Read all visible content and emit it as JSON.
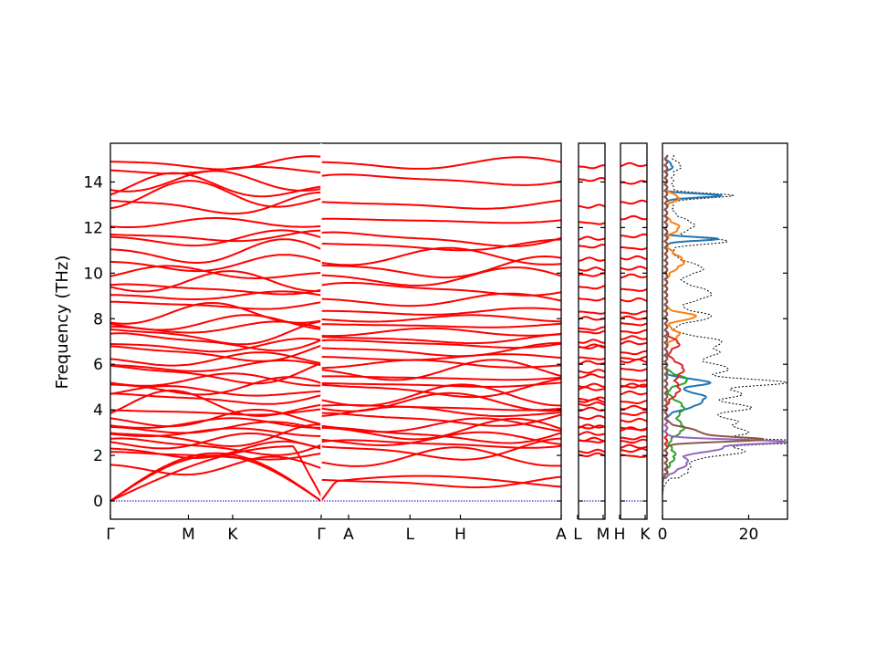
{
  "chart_data": {
    "type": "line",
    "ylabel": "Frequency (THz)",
    "ylim": [
      -0.8,
      15.7
    ],
    "y_ticks": [
      0,
      2,
      4,
      6,
      8,
      10,
      12,
      14
    ],
    "band_color": "#ff0000",
    "zero_line_color": "#0000cc",
    "panels": [
      {
        "name": "main-path",
        "segments": [
          {
            "labels": [
              "Γ",
              "M",
              "K",
              "Γ"
            ],
            "dist": [
              0,
              0.37,
              0.58,
              1.0
            ]
          },
          {
            "labels": [
              "A",
              "L",
              "H",
              "A"
            ],
            "dist": [
              0,
              0.37,
              0.58,
              1.0
            ]
          }
        ]
      },
      {
        "name": "L-M",
        "segments": [
          {
            "labels": [
              "L",
              "M"
            ],
            "dist": [
              0,
              1
            ]
          }
        ]
      },
      {
        "name": "H-K",
        "segments": [
          {
            "labels": [
              "H",
              "K"
            ],
            "dist": [
              0,
              1
            ]
          }
        ]
      }
    ],
    "acoustic_gamma_m": [
      [
        0,
        0
      ],
      [
        0.37,
        1.6
      ],
      [
        0.37,
        2.0
      ],
      [
        0.37,
        2.3
      ]
    ],
    "band_energies_gamma": [
      1.5,
      2.0,
      2.2,
      2.4,
      2.6,
      2.8,
      3.0,
      3.2,
      3.4,
      3.6,
      3.9,
      4.2,
      4.5,
      4.8,
      5.0,
      5.3,
      5.6,
      5.9,
      6.2,
      6.5,
      6.8,
      7.0,
      7.3,
      7.6,
      7.8,
      8.2,
      8.6,
      9.0,
      9.3,
      9.6,
      10.0,
      10.4,
      10.9,
      11.5,
      11.6,
      12.2,
      13.0,
      13.4,
      13.8,
      14.0,
      14.5,
      14.8
    ],
    "band_energies_a": [
      0.8,
      1.9,
      2.2,
      2.5,
      2.7,
      2.9,
      3.1,
      3.3,
      3.6,
      3.9,
      4.1,
      4.3,
      4.6,
      4.9,
      5.1,
      5.4,
      5.7,
      6.0,
      6.3,
      6.6,
      6.9,
      7.1,
      7.4,
      7.7,
      8.0,
      8.3,
      8.8,
      9.3,
      9.8,
      10.2,
      10.7,
      11.2,
      11.5,
      12.3,
      13.0,
      14.1,
      14.8
    ],
    "dos": {
      "xlim": [
        0,
        29
      ],
      "x_ticks": [
        0,
        20
      ],
      "total_color": "#000000",
      "series": [
        {
          "color": "#1f77b4",
          "peaks": [
            [
              14.7,
              1.5,
              0.12
            ],
            [
              13.4,
              13,
              0.08
            ],
            [
              11.5,
              12,
              0.08
            ],
            [
              5.2,
              10,
              0.15
            ],
            [
              4.6,
              8,
              0.2
            ],
            [
              4.2,
              6,
              0.2
            ]
          ]
        },
        {
          "color": "#ff7f0e",
          "peaks": [
            [
              13.3,
              3,
              0.15
            ],
            [
              12.0,
              3,
              0.2
            ],
            [
              10.5,
              4,
              0.3
            ],
            [
              8.1,
              7,
              0.15
            ],
            [
              7.3,
              3,
              0.2
            ]
          ]
        },
        {
          "color": "#2ca02c",
          "peaks": [
            [
              5.3,
              5,
              0.2
            ],
            [
              4.1,
              4,
              0.3
            ],
            [
              3.2,
              4,
              0.3
            ],
            [
              2.0,
              2,
              0.3
            ]
          ]
        },
        {
          "color": "#d62728",
          "peaks": [
            [
              6.9,
              3,
              0.2
            ],
            [
              5.8,
              4,
              0.3
            ],
            [
              4.9,
              3,
              0.3
            ]
          ]
        },
        {
          "color": "#9467bd",
          "peaks": [
            [
              2.6,
              26,
              0.1
            ],
            [
              2.3,
              12,
              0.15
            ],
            [
              1.7,
              5,
              0.3
            ]
          ]
        },
        {
          "color": "#8c564b",
          "peaks": [
            [
              2.7,
              20,
              0.1
            ],
            [
              3.0,
              8,
              0.2
            ]
          ]
        }
      ],
      "total_peaks": [
        [
          14.7,
          2,
          0.15
        ],
        [
          13.4,
          14,
          0.1
        ],
        [
          12.1,
          5,
          0.25
        ],
        [
          11.4,
          13,
          0.12
        ],
        [
          10.2,
          7,
          0.25
        ],
        [
          9.1,
          9,
          0.3
        ],
        [
          8.1,
          9,
          0.2
        ],
        [
          7.0,
          11,
          0.2
        ],
        [
          6.5,
          10,
          0.2
        ],
        [
          5.8,
          13,
          0.25
        ],
        [
          5.2,
          25,
          0.15
        ],
        [
          4.7,
          16,
          0.2
        ],
        [
          4.1,
          18,
          0.2
        ],
        [
          3.5,
          14,
          0.2
        ],
        [
          3.0,
          17,
          0.2
        ],
        [
          2.6,
          29,
          0.1
        ],
        [
          2.2,
          16,
          0.2
        ],
        [
          1.5,
          4,
          0.4
        ]
      ]
    }
  }
}
